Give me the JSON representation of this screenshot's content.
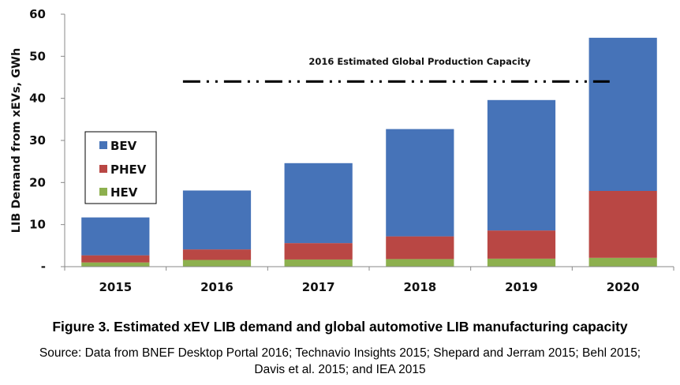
{
  "chart_data": {
    "type": "bar",
    "stacked": true,
    "title": "",
    "xlabel": "",
    "ylabel": "LIB Demand from xEVs, GWh",
    "ylim": [
      0,
      60
    ],
    "yticks": [
      0,
      10,
      20,
      30,
      40,
      50,
      60
    ],
    "ytick_labels": [
      "-",
      "10",
      "20",
      "30",
      "40",
      "50",
      "60"
    ],
    "categories": [
      "2015",
      "2016",
      "2017",
      "2018",
      "2019",
      "2020"
    ],
    "series": [
      {
        "name": "HEV",
        "color": "#8DB04E",
        "values": [
          1.0,
          1.6,
          1.7,
          1.8,
          1.9,
          2.1
        ]
      },
      {
        "name": "PHEV",
        "color": "#B94744",
        "values": [
          1.7,
          2.5,
          3.9,
          5.4,
          6.7,
          15.9
        ]
      },
      {
        "name": "BEV",
        "color": "#4673B8",
        "values": [
          9.0,
          14.0,
          19.0,
          25.5,
          31.0,
          36.4
        ]
      }
    ],
    "totals": [
      11.7,
      18.1,
      24.6,
      32.7,
      39.6,
      54.4
    ],
    "legend": {
      "placement": "middle-left",
      "entries": [
        "BEV",
        "PHEV",
        "HEV"
      ]
    },
    "reference_line": {
      "label": "2016 Estimated Global Production Capacity",
      "value": 44,
      "style": "dash-dot-dot",
      "color": "#000000",
      "x_start_category": "2016",
      "x_end_category": "2020"
    },
    "grid": false
  },
  "caption": {
    "title": "Figure 3. Estimated xEV LIB demand and global automotive LIB manufacturing capacity",
    "source_line1": "Source: Data from BNEF Desktop Portal 2016; Technavio Insights 2015; Shepard and Jerram 2015; Behl 2015;",
    "source_line2": "Davis et al. 2015; and IEA 2015"
  }
}
